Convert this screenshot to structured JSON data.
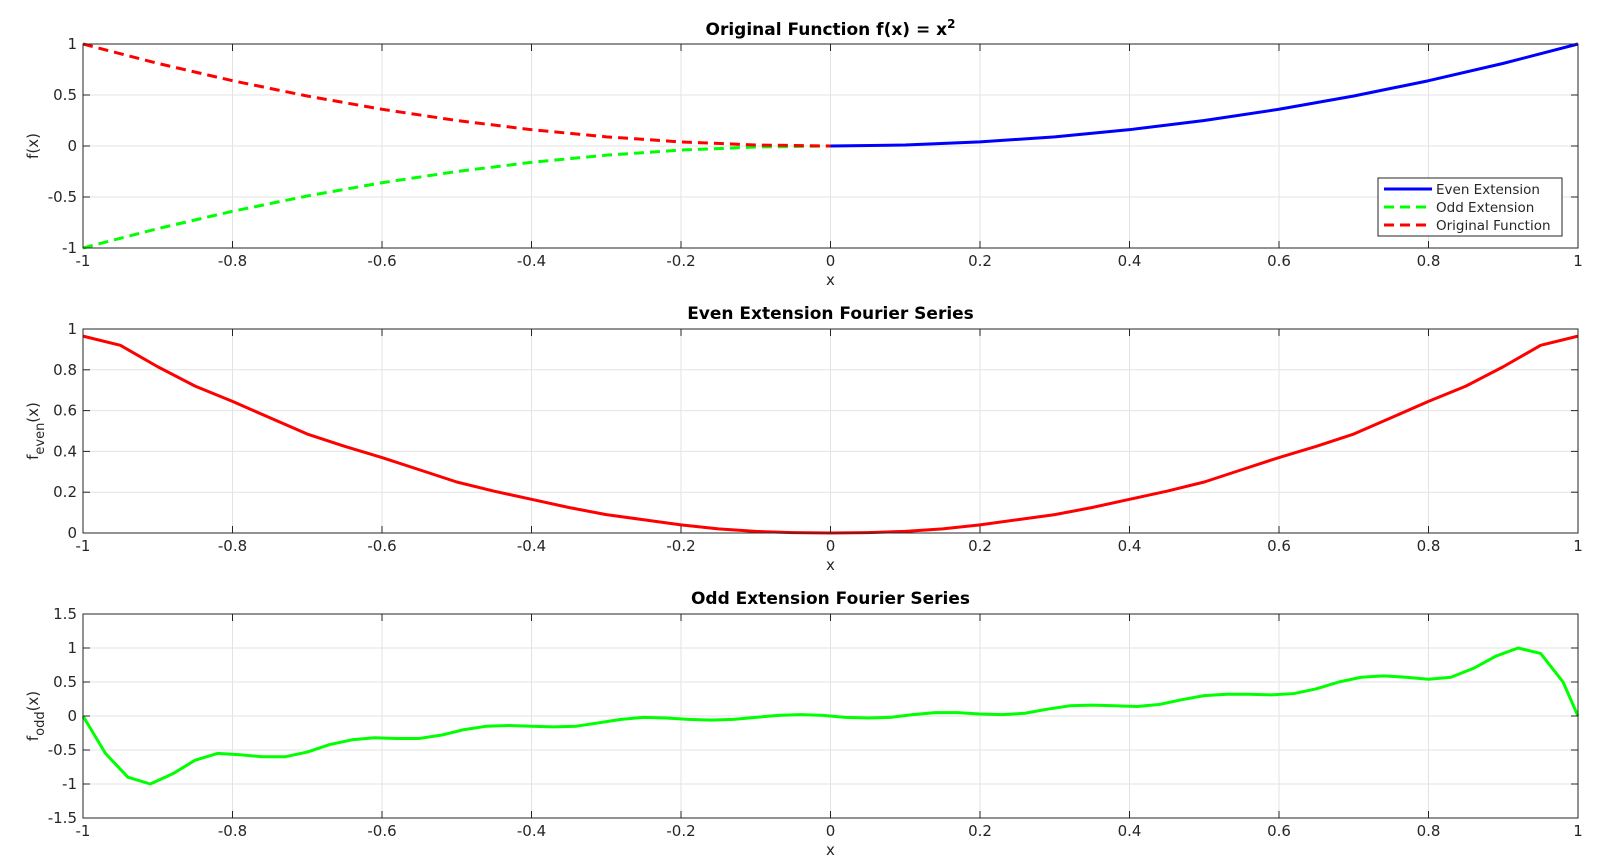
{
  "figure": {
    "background": "#ffffff"
  },
  "chart_data": [
    {
      "type": "line",
      "title": "Original Function f(x) = x",
      "title_superscript": "2",
      "xlabel": "x",
      "ylabel": "f(x)",
      "xlim": [
        -1,
        1
      ],
      "ylim": [
        -1,
        1
      ],
      "xticks": [
        -1,
        -0.8,
        -0.6,
        -0.4,
        -0.2,
        0,
        0.2,
        0.4,
        0.6,
        0.8,
        1
      ],
      "xtick_labels": [
        "-1",
        "-0.8",
        "-0.6",
        "-0.4",
        "-0.2",
        "0",
        "0.2",
        "0.4",
        "0.6",
        "0.8",
        "1"
      ],
      "yticks": [
        -1,
        -0.5,
        0,
        0.5,
        1
      ],
      "ytick_labels": [
        "-1",
        "-0.5",
        "0",
        "0.5",
        "1"
      ],
      "grid": true,
      "legend": "bottom-right",
      "series": [
        {
          "name": "Even Extension",
          "color": "#0000ff",
          "style": "solid",
          "x": [
            0,
            0.1,
            0.2,
            0.3,
            0.4,
            0.5,
            0.6,
            0.7,
            0.8,
            0.9,
            1.0
          ],
          "y": [
            0,
            0.01,
            0.04,
            0.09,
            0.16,
            0.25,
            0.36,
            0.49,
            0.64,
            0.81,
            1.0
          ]
        },
        {
          "name": "Odd Extension",
          "color": "#00ff00",
          "style": "dashed",
          "x": [
            -1.0,
            -0.9,
            -0.8,
            -0.7,
            -0.6,
            -0.5,
            -0.4,
            -0.3,
            -0.2,
            -0.1,
            0
          ],
          "y": [
            -1.0,
            -0.81,
            -0.64,
            -0.49,
            -0.36,
            -0.25,
            -0.16,
            -0.09,
            -0.04,
            -0.01,
            0
          ]
        },
        {
          "name": "Original Function",
          "color": "#ff0000",
          "style": "dashed",
          "x": [
            -1.0,
            -0.9,
            -0.8,
            -0.7,
            -0.6,
            -0.5,
            -0.4,
            -0.3,
            -0.2,
            -0.1,
            0
          ],
          "y": [
            1.0,
            0.81,
            0.64,
            0.49,
            0.36,
            0.25,
            0.16,
            0.09,
            0.04,
            0.01,
            0
          ]
        }
      ]
    },
    {
      "type": "line",
      "title": "Even Extension Fourier Series",
      "xlabel": "x",
      "ylabel": "f",
      "ylabel_subscript": "even",
      "ylabel_suffix": "(x)",
      "xlim": [
        -1,
        1
      ],
      "ylim": [
        0,
        1
      ],
      "xticks": [
        -1,
        -0.8,
        -0.6,
        -0.4,
        -0.2,
        0,
        0.2,
        0.4,
        0.6,
        0.8,
        1
      ],
      "xtick_labels": [
        "-1",
        "-0.8",
        "-0.6",
        "-0.4",
        "-0.2",
        "0",
        "0.2",
        "0.4",
        "0.6",
        "0.8",
        "1"
      ],
      "yticks": [
        0,
        0.2,
        0.4,
        0.6,
        0.8,
        1
      ],
      "ytick_labels": [
        "0",
        "0.2",
        "0.4",
        "0.6",
        "0.8",
        "1"
      ],
      "grid": true,
      "series": [
        {
          "color": "#ff0000",
          "style": "solid",
          "x": [
            -1.0,
            -0.95,
            -0.9,
            -0.85,
            -0.8,
            -0.75,
            -0.7,
            -0.65,
            -0.6,
            -0.55,
            -0.5,
            -0.45,
            -0.4,
            -0.35,
            -0.3,
            -0.25,
            -0.2,
            -0.15,
            -0.1,
            -0.05,
            0,
            0.05,
            0.1,
            0.15,
            0.2,
            0.25,
            0.3,
            0.35,
            0.4,
            0.45,
            0.5,
            0.55,
            0.6,
            0.65,
            0.7,
            0.75,
            0.8,
            0.85,
            0.9,
            0.95,
            1.0
          ],
          "y": [
            0.965,
            0.92,
            0.815,
            0.72,
            0.645,
            0.565,
            0.485,
            0.425,
            0.37,
            0.31,
            0.25,
            0.205,
            0.165,
            0.125,
            0.09,
            0.065,
            0.04,
            0.02,
            0.008,
            0.002,
            0.0,
            0.002,
            0.008,
            0.02,
            0.04,
            0.065,
            0.09,
            0.125,
            0.165,
            0.205,
            0.25,
            0.31,
            0.37,
            0.425,
            0.485,
            0.565,
            0.645,
            0.72,
            0.815,
            0.92,
            0.965
          ]
        }
      ]
    },
    {
      "type": "line",
      "title": "Odd Extension Fourier Series",
      "xlabel": "x",
      "ylabel": "f",
      "ylabel_subscript": "odd",
      "ylabel_suffix": "(x)",
      "xlim": [
        -1,
        1
      ],
      "ylim": [
        -1.5,
        1.5
      ],
      "xticks": [
        -1,
        -0.8,
        -0.6,
        -0.4,
        -0.2,
        0,
        0.2,
        0.4,
        0.6,
        0.8,
        1
      ],
      "xtick_labels": [
        "-1",
        "-0.8",
        "-0.6",
        "-0.4",
        "-0.2",
        "0",
        "0.2",
        "0.4",
        "0.6",
        "0.8",
        "1"
      ],
      "yticks": [
        -1.5,
        -1,
        -0.5,
        0,
        0.5,
        1,
        1.5
      ],
      "ytick_labels": [
        "-1.5",
        "-1",
        "-0.5",
        "0",
        "0.5",
        "1",
        "1.5"
      ],
      "grid": true,
      "series": [
        {
          "color": "#00ff00",
          "style": "solid",
          "x": [
            -1.0,
            -0.97,
            -0.94,
            -0.91,
            -0.88,
            -0.85,
            -0.82,
            -0.79,
            -0.76,
            -0.73,
            -0.7,
            -0.67,
            -0.64,
            -0.61,
            -0.58,
            -0.55,
            -0.52,
            -0.49,
            -0.46,
            -0.43,
            -0.4,
            -0.37,
            -0.34,
            -0.31,
            -0.28,
            -0.25,
            -0.22,
            -0.19,
            -0.16,
            -0.13,
            -0.1,
            -0.07,
            -0.04,
            -0.01,
            0.02,
            0.05,
            0.08,
            0.11,
            0.14,
            0.17,
            0.2,
            0.23,
            0.26,
            0.29,
            0.32,
            0.35,
            0.38,
            0.41,
            0.44,
            0.47,
            0.5,
            0.53,
            0.56,
            0.59,
            0.62,
            0.65,
            0.68,
            0.71,
            0.74,
            0.77,
            0.8,
            0.83,
            0.86,
            0.89,
            0.92,
            0.95,
            0.98,
            1.0
          ],
          "y": [
            0.0,
            -0.55,
            -0.9,
            -1.0,
            -0.85,
            -0.65,
            -0.55,
            -0.57,
            -0.6,
            -0.6,
            -0.53,
            -0.42,
            -0.35,
            -0.32,
            -0.33,
            -0.33,
            -0.28,
            -0.2,
            -0.15,
            -0.14,
            -0.15,
            -0.16,
            -0.15,
            -0.1,
            -0.05,
            -0.02,
            -0.03,
            -0.05,
            -0.06,
            -0.05,
            -0.02,
            0.01,
            0.02,
            0.01,
            -0.02,
            -0.03,
            -0.02,
            0.02,
            0.05,
            0.05,
            0.03,
            0.02,
            0.04,
            0.1,
            0.15,
            0.16,
            0.15,
            0.14,
            0.17,
            0.24,
            0.3,
            0.32,
            0.32,
            0.31,
            0.33,
            0.4,
            0.5,
            0.57,
            0.59,
            0.57,
            0.54,
            0.57,
            0.7,
            0.88,
            1.0,
            0.92,
            0.5,
            0.0
          ]
        }
      ]
    }
  ]
}
